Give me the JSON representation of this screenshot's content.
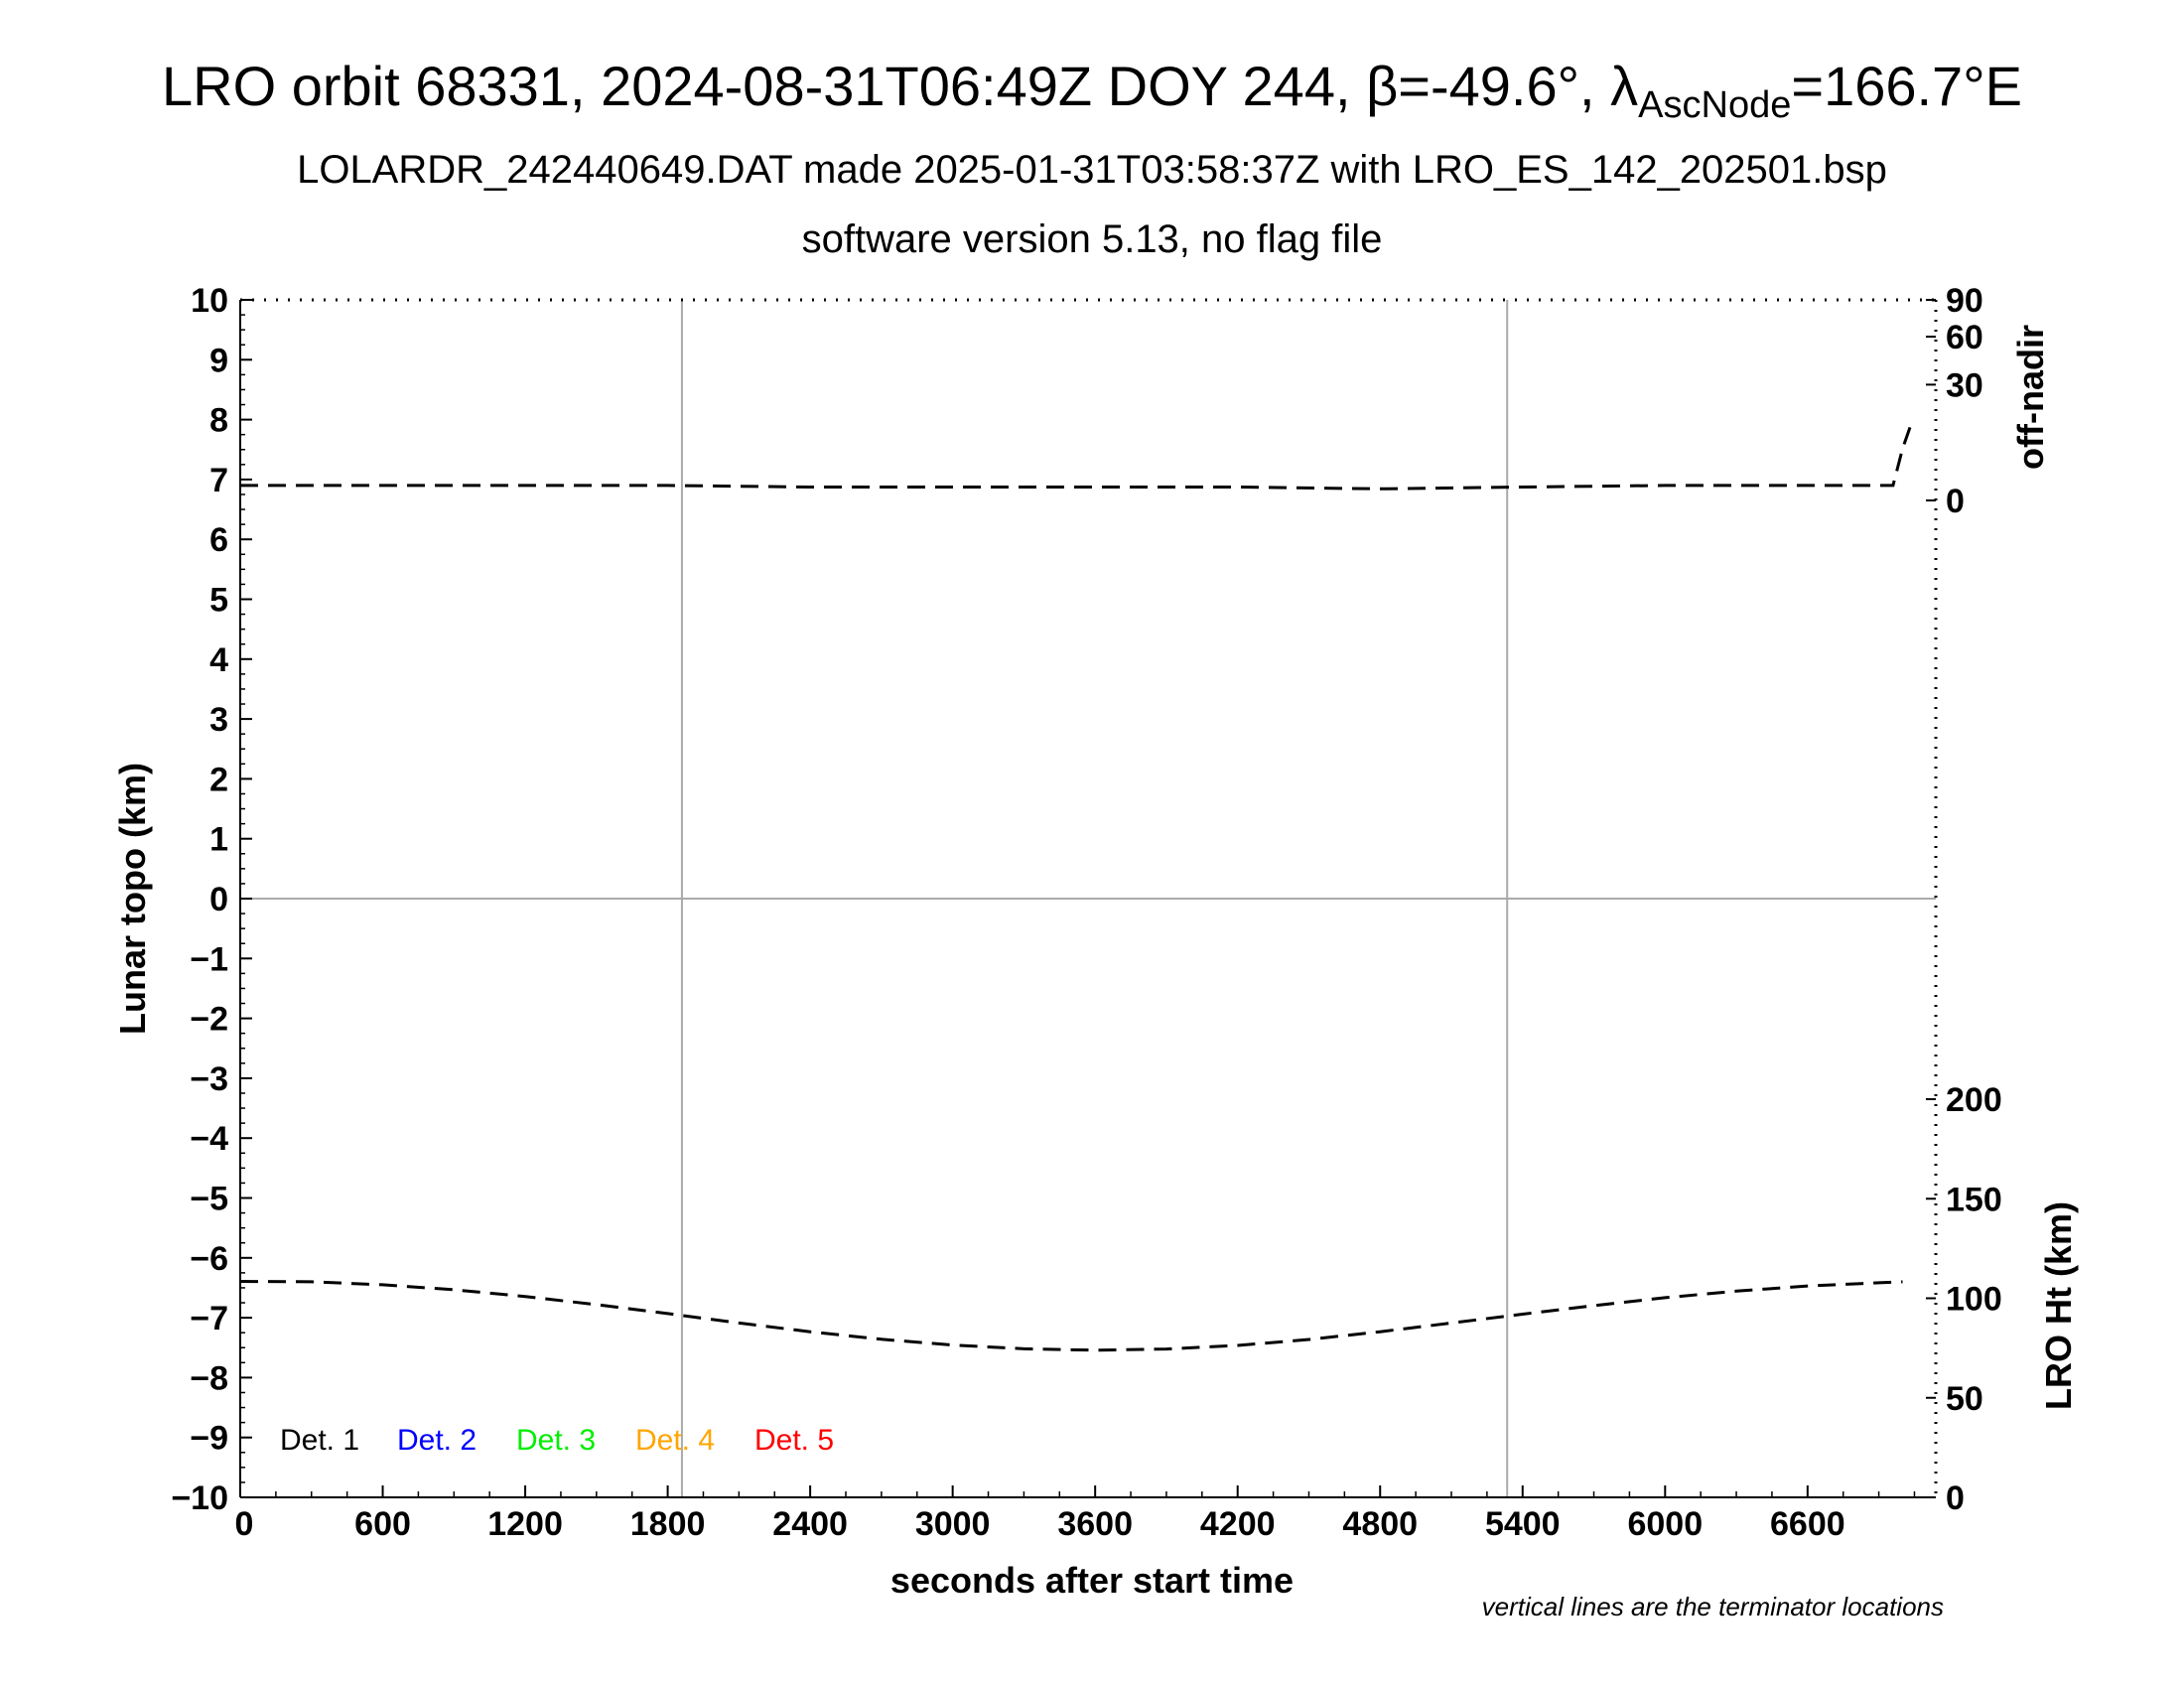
{
  "header": {
    "title_main": "LRO orbit 68331, 2024-08-31T06:49Z DOY 244, β=-49.6°, λ",
    "title_sub": "AscNode",
    "title_end": "=166.7°E",
    "subtitle": "LOLARDR_242440649.DAT made 2025-01-31T03:58:37Z with LRO_ES_142_202501.bsp",
    "subtitle2": "software version 5.13, no flag file"
  },
  "chart_data": {
    "type": "line",
    "xlabel": "seconds after start time",
    "ylabel": "Lunar topo (km)",
    "y2label_top": "off-nadir",
    "y2label_bottom": "LRO Ht (km)",
    "xlim": [
      0,
      7140
    ],
    "ylim": [
      -10,
      10
    ],
    "x_ticks": [
      0,
      600,
      1200,
      1800,
      2400,
      3000,
      3600,
      4200,
      4800,
      5400,
      6000,
      6600
    ],
    "y_ticks": [
      10,
      9,
      8,
      7,
      6,
      5,
      4,
      3,
      2,
      1,
      0,
      -1,
      -2,
      -3,
      -4,
      -5,
      -6,
      -7,
      -8,
      -9,
      -10
    ],
    "offnadir_ticks": [
      90,
      60,
      30,
      0
    ],
    "offnadir_range_deg": [
      0,
      90
    ],
    "height_ticks": [
      200,
      150,
      100,
      50,
      0
    ],
    "height_range_km": [
      0,
      300
    ],
    "grid": "on",
    "terminator_lines_s": [
      1860,
      5335
    ],
    "legend": [
      "Det. 1",
      "Det. 2",
      "Det. 3",
      "Det. 4",
      "Det. 5"
    ],
    "legend_colors": [
      "#000000",
      "#0000ff",
      "#00ee00",
      "#ffa500",
      "#ff0000"
    ],
    "legend_placement": "bottom-left",
    "note": "vertical lines are the terminator locations",
    "series": [
      {
        "name": "off-nadir",
        "axis": "off-nadir",
        "style": "dashed",
        "x": [
          0,
          600,
          1200,
          1800,
          2400,
          3000,
          3600,
          4200,
          4800,
          5400,
          6000,
          6600,
          6900,
          6960,
          7000,
          7040
        ],
        "values": [
          0.5,
          0.5,
          0.5,
          0.5,
          0.4,
          0.4,
          0.4,
          0.4,
          0.3,
          0.4,
          0.5,
          0.5,
          0.5,
          0.5,
          6,
          14
        ]
      },
      {
        "name": "LRO Ht",
        "axis": "height",
        "style": "dashed",
        "x": [
          0,
          300,
          600,
          900,
          1200,
          1500,
          1800,
          2100,
          2400,
          2700,
          3000,
          3300,
          3600,
          3900,
          4200,
          4500,
          4800,
          5100,
          5400,
          5700,
          6000,
          6300,
          6600,
          6900,
          7000
        ],
        "values": [
          108.5,
          108.3,
          106.8,
          104.3,
          100.9,
          96.8,
          92.3,
          87.6,
          83.2,
          79.4,
          76.5,
          74.6,
          73.9,
          74.5,
          76.3,
          79.3,
          83.2,
          87.6,
          92.0,
          96.3,
          100.3,
          103.6,
          106.2,
          107.8,
          108.3
        ]
      }
    ]
  }
}
